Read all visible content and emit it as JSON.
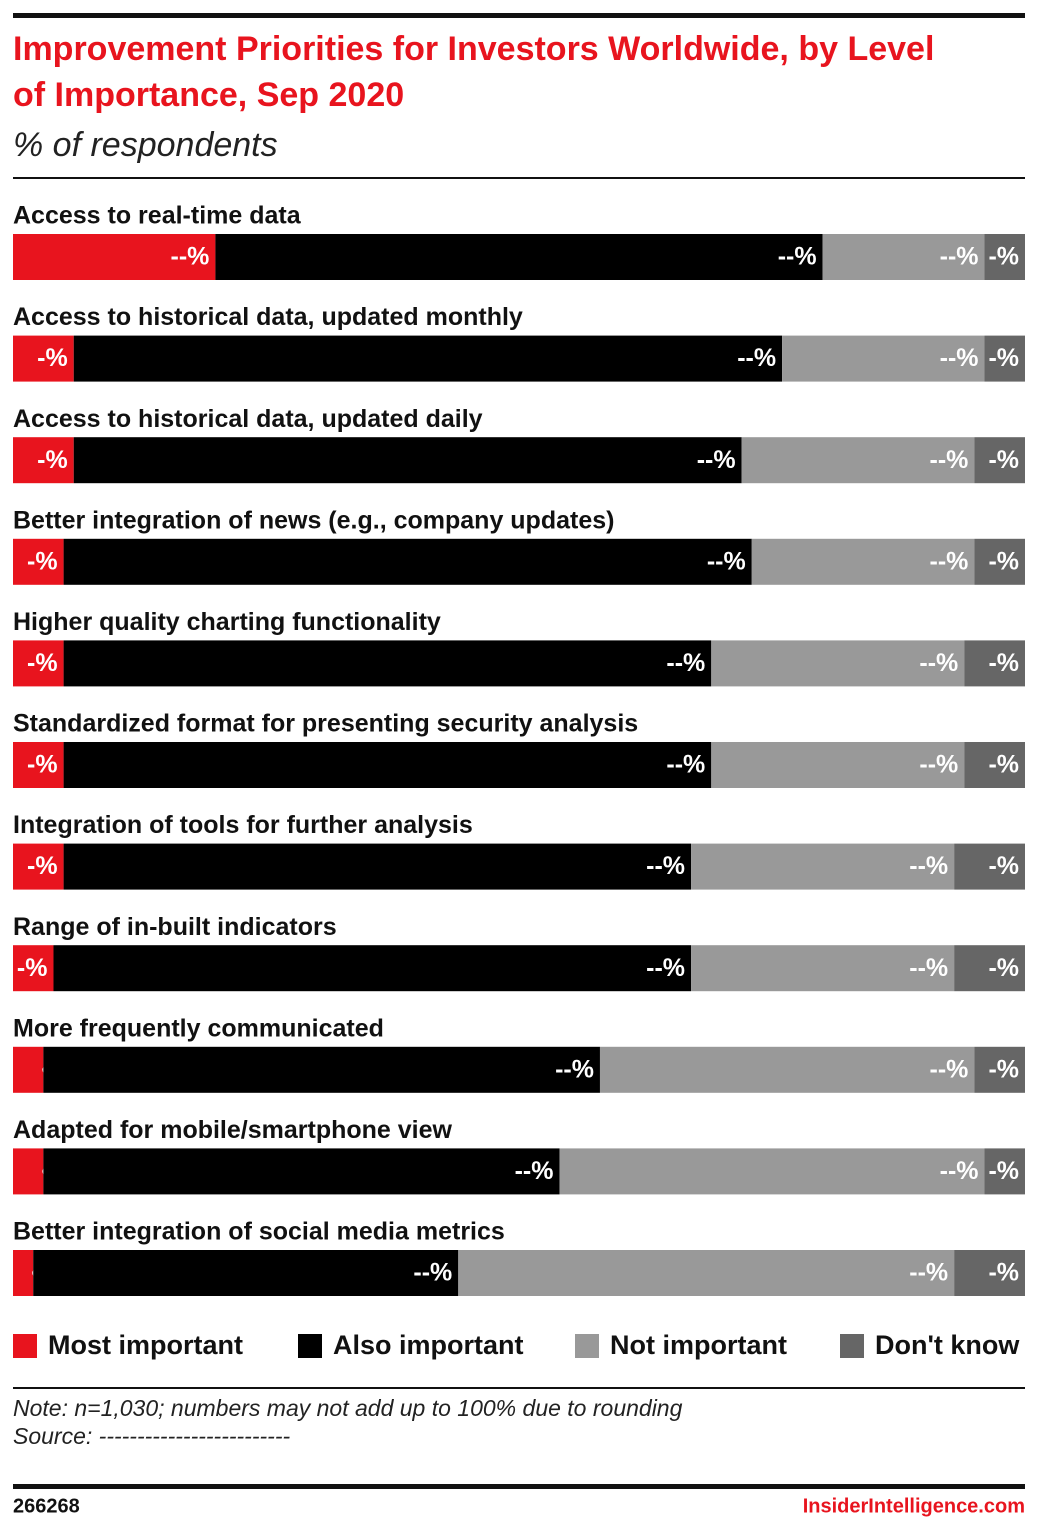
{
  "chart_data": {
    "type": "stacked-bar-horizontal",
    "title": "Improvement Priorities for Investors Worldwide, by Level of Importance, Sep 2020",
    "subtitle": "% of respondents",
    "categories": [
      "Access to real-time data",
      "Access to historical data, updated monthly",
      "Access to historical data, updated daily",
      "Better integration of news (e.g., company updates)",
      "Higher quality charting functionality",
      "Standardized format for presenting security analysis",
      "Integration of tools for further analysis",
      "Range of in-built indicators",
      "More frequently communicated",
      "Adapted for mobile/smartphone view",
      "Better integration of social media metrics"
    ],
    "xlim": [
      0,
      100
    ],
    "series": [
      {
        "name": "Most important",
        "color": "#e8141e",
        "values": [
          20,
          6,
          6,
          5,
          5,
          5,
          5,
          4,
          3,
          3,
          2
        ],
        "value_labels": [
          "--%",
          "-%",
          "-%",
          "-%",
          "-%",
          "-%",
          "-%",
          "-%",
          "--%",
          "--%",
          "--%"
        ]
      },
      {
        "name": "Also important",
        "color": "#000000",
        "values": [
          60,
          70,
          66,
          68,
          64,
          64,
          62,
          63,
          55,
          51,
          42
        ],
        "value_labels": [
          "--%",
          "--%",
          "--%",
          "--%",
          "--%",
          "--%",
          "--%",
          "--%",
          "--%",
          "--%",
          "--%"
        ]
      },
      {
        "name": "Not important",
        "color": "#999999",
        "values": [
          16,
          20,
          23,
          22,
          25,
          25,
          26,
          26,
          37,
          42,
          49
        ],
        "value_labels": [
          "--%",
          "--%",
          "--%",
          "--%",
          "--%",
          "--%",
          "--%",
          "--%",
          "--%",
          "--%",
          "--%"
        ]
      },
      {
        "name": "Don't know",
        "color": "#666666",
        "values": [
          4,
          4,
          5,
          5,
          6,
          6,
          7,
          7,
          5,
          4,
          7
        ],
        "value_labels": [
          "-%",
          "-%",
          "-%",
          "-%",
          "-%",
          "-%",
          "-%",
          "-%",
          "-%",
          "-%",
          "-%"
        ]
      }
    ],
    "note": "Note: n=1,030; numbers may not add up to 100% due to rounding",
    "source": "Source: -------------------------",
    "chart_id": "266268",
    "credit": "InsiderIntelligence.com"
  }
}
